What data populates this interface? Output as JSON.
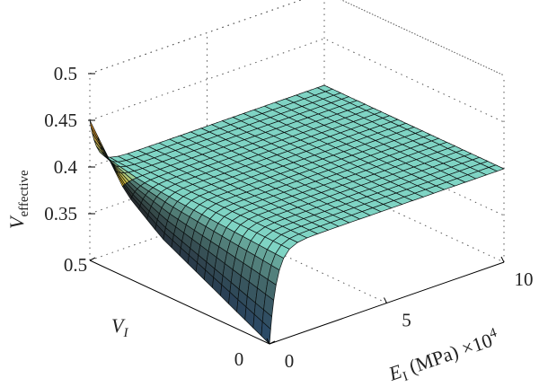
{
  "chart_data": {
    "type": "surface",
    "title": "",
    "xlabel": {
      "main": "E",
      "sub": "I",
      "unit": " (MPa) ×10",
      "exponent": "4"
    },
    "ylabel": {
      "main": "V",
      "sub": "I"
    },
    "zlabel": {
      "main": "V",
      "sub": "effective"
    },
    "x_ticks": [
      "0",
      "5",
      "10"
    ],
    "y_ticks": [
      "0",
      "0.5"
    ],
    "z_ticks": [
      "0.5",
      "0.45",
      "0.4",
      "0.35"
    ],
    "xlim": [
      0,
      10
    ],
    "ylim": [
      0,
      0.5
    ],
    "zlim": [
      0.3,
      0.5
    ],
    "z_at_E0": {
      "V": [
        0,
        0.05,
        0.1,
        0.15,
        0.2,
        0.25,
        0.3,
        0.35,
        0.4,
        0.45,
        0.5
      ],
      "values": [
        0.3,
        0.31,
        0.32,
        0.33,
        0.34,
        0.35,
        0.36,
        0.375,
        0.39,
        0.42,
        0.45
      ]
    },
    "z_plateau": 0.4,
    "colors": {
      "plateau": "#7fd4c4",
      "high": "#7a1818",
      "mid": "#e8b820",
      "low": "#2a4a6a",
      "mesh": "#0b1010"
    }
  }
}
